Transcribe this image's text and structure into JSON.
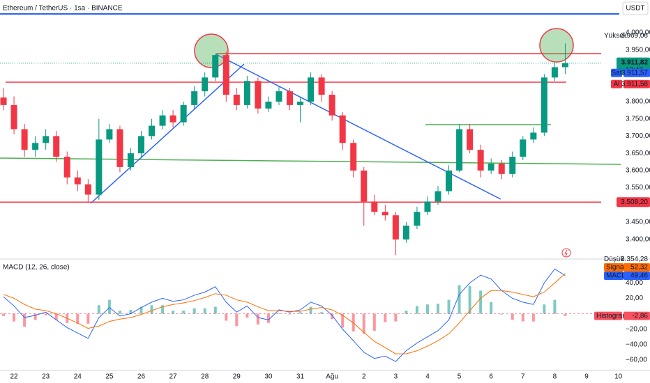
{
  "header": {
    "title": "Ethereum / TetherUS · 1sa · BINANCE",
    "currency": "USDT"
  },
  "chart_data": [
    {
      "type": "candlestick",
      "x": [
        -0.33,
        0,
        0.33,
        0.67,
        1,
        1.33,
        1.67,
        2,
        2.33,
        2.67,
        3,
        3.33,
        3.67,
        4,
        4.33,
        4.67,
        5,
        5.33,
        5.67,
        6,
        6.33,
        6.67,
        7,
        7.33,
        7.67,
        8,
        8.33,
        8.67,
        9,
        9.33,
        9.67,
        10,
        10.33,
        10.67,
        11,
        11.33,
        11.67,
        12,
        12.33,
        12.67,
        13,
        13.33,
        13.67,
        14,
        14.33,
        14.67,
        15,
        15.33,
        15.67,
        16,
        16.33,
        16.67,
        17,
        17.33
      ],
      "open": [
        3812,
        3790,
        3720,
        3660,
        3680,
        3700,
        3640,
        3580,
        3560,
        3530,
        3690,
        3720,
        3610,
        3650,
        3700,
        3730,
        3760,
        3740,
        3790,
        3830,
        3870,
        3935,
        3820,
        3790,
        3860,
        3780,
        3800,
        3830,
        3790,
        3800,
        3870,
        3820,
        3760,
        3680,
        3600,
        3510,
        3480,
        3470,
        3400,
        3440,
        3480,
        3510,
        3540,
        3600,
        3720,
        3660,
        3600,
        3620,
        3590,
        3640,
        3690,
        3710,
        3870,
        3900
      ],
      "high": [
        3840,
        3815,
        3735,
        3700,
        3720,
        3715,
        3655,
        3600,
        3575,
        3750,
        3735,
        3730,
        3665,
        3715,
        3750,
        3775,
        3775,
        3800,
        3845,
        3885,
        3940,
        3945,
        3840,
        3875,
        3870,
        3815,
        3845,
        3840,
        3815,
        3885,
        3880,
        3830,
        3770,
        3690,
        3610,
        3530,
        3500,
        3480,
        3450,
        3495,
        3525,
        3555,
        3615,
        3735,
        3735,
        3675,
        3635,
        3630,
        3655,
        3700,
        3725,
        3880,
        3915,
        3969.06
      ],
      "low": [
        3775,
        3705,
        3640,
        3640,
        3660,
        3625,
        3560,
        3540,
        3510,
        3515,
        3680,
        3595,
        3600,
        3635,
        3690,
        3720,
        3725,
        3730,
        3780,
        3815,
        3860,
        3800,
        3775,
        3780,
        3765,
        3770,
        3790,
        3775,
        3740,
        3790,
        3800,
        3745,
        3660,
        3580,
        3440,
        3470,
        3455,
        3354.28,
        3390,
        3430,
        3470,
        3500,
        3530,
        3595,
        3650,
        3580,
        3590,
        3575,
        3580,
        3630,
        3680,
        3700,
        3860,
        3880
      ],
      "close": [
        3790,
        3720,
        3660,
        3680,
        3700,
        3640,
        3580,
        3560,
        3530,
        3690,
        3720,
        3610,
        3650,
        3700,
        3730,
        3760,
        3740,
        3790,
        3830,
        3870,
        3935,
        3820,
        3790,
        3860,
        3780,
        3800,
        3830,
        3790,
        3800,
        3870,
        3820,
        3760,
        3680,
        3600,
        3510,
        3480,
        3470,
        3400,
        3440,
        3480,
        3510,
        3540,
        3600,
        3720,
        3660,
        3600,
        3620,
        3590,
        3640,
        3690,
        3710,
        3870,
        3900,
        3911.82
      ],
      "up_color": "#089981",
      "down_color": "#f23645",
      "xlim": [
        -0.44,
        18.46
      ],
      "ylim": [
        3343,
        4095
      ],
      "yticks": [
        {
          "value": 4000,
          "label": "4.000,00"
        },
        {
          "value": 3950,
          "label": "3.950,00"
        },
        {
          "value": 3800,
          "label": "3.800,00"
        },
        {
          "value": 3750,
          "label": "3.750,00"
        },
        {
          "value": 3700,
          "label": "3.700,00"
        },
        {
          "value": 3650,
          "label": "3.650,00"
        },
        {
          "value": 3600,
          "label": "3.600,00"
        },
        {
          "value": 3550,
          "label": "3.550,00"
        },
        {
          "value": 3450,
          "label": "3.450,00"
        },
        {
          "value": 3400,
          "label": "3.400,00"
        }
      ],
      "high_tag": {
        "name": "Yüksek",
        "value": 3969.06,
        "label": "3.969,06"
      },
      "low_tag": {
        "name": "Düşük",
        "value": 3354.28,
        "label": "3.354,28"
      },
      "last_price": {
        "value": 3911.82,
        "label": "3.911,82",
        "countdown": "13:43",
        "color": "#089981"
      },
      "bid_ask": [
        {
          "name": "Al",
          "value": 3911.58,
          "label": "3.911,58",
          "color": "#f23645"
        },
        {
          "name": "Sat",
          "value": 3911.57,
          "label": "3.911,57",
          "color": "#2962ff"
        }
      ],
      "level": {
        "value": 3508.2,
        "label": "3.508,20",
        "color": "#f23645"
      }
    },
    {
      "type": "macd",
      "title": "MACD (12, 26, close)",
      "x": [
        -0.33,
        0,
        0.33,
        0.67,
        1,
        1.33,
        1.67,
        2,
        2.33,
        2.67,
        3,
        3.33,
        3.67,
        4,
        4.33,
        4.67,
        5,
        5.33,
        5.67,
        6,
        6.33,
        6.67,
        7,
        7.33,
        7.67,
        8,
        8.33,
        8.67,
        9,
        9.33,
        9.67,
        10,
        10.33,
        10.67,
        11,
        11.33,
        11.67,
        12,
        12.33,
        12.67,
        13,
        13.33,
        13.67,
        14,
        14.33,
        14.67,
        15,
        15.33,
        15.67,
        16,
        16.33,
        16.67,
        17,
        17.33
      ],
      "series": [
        {
          "name": "MACD",
          "color": "#2962ff",
          "last_label": "49,46",
          "values": [
            22,
            10,
            -5,
            -2,
            2,
            -8,
            -18,
            -25,
            -32,
            -5,
            8,
            -3,
            0,
            8,
            15,
            20,
            16,
            18,
            24,
            28,
            35,
            15,
            2,
            10,
            -5,
            -8,
            5,
            2,
            5,
            15,
            10,
            -2,
            -20,
            -35,
            -50,
            -58,
            -55,
            -62,
            -48,
            -38,
            -30,
            -22,
            -8,
            25,
            40,
            50,
            45,
            30,
            20,
            15,
            12,
            40,
            58,
            49.46
          ]
        },
        {
          "name": "Signal",
          "color": "#ff6d00",
          "last_label": "52,32",
          "values": [
            25,
            20,
            12,
            6,
            4,
            0,
            -6,
            -12,
            -19,
            -16,
            -10,
            -7,
            -5,
            -1,
            4,
            9,
            12,
            14,
            17,
            21,
            26,
            24,
            18,
            15,
            9,
            4,
            4,
            3,
            3,
            6,
            8,
            5,
            -2,
            -12,
            -24,
            -36,
            -44,
            -52,
            -52,
            -48,
            -42,
            -35,
            -26,
            -12,
            4,
            20,
            30,
            30,
            28,
            25,
            22,
            28,
            40,
            52.32
          ]
        }
      ],
      "histogram": {
        "name": "Histogram",
        "last_label": "-2,86",
        "up_color": "#26a69a",
        "down_color": "#f7525f",
        "values": [
          -3,
          -10,
          -17,
          -8,
          -2,
          -8,
          -12,
          -13,
          -13,
          11,
          18,
          4,
          5,
          9,
          11,
          11,
          4,
          4,
          7,
          7,
          9,
          -9,
          -16,
          -5,
          -14,
          -12,
          1,
          -1,
          2,
          9,
          2,
          -7,
          -18,
          -23,
          -26,
          -22,
          -11,
          -10,
          4,
          10,
          12,
          13,
          18,
          37,
          36,
          30,
          15,
          0,
          -8,
          -10,
          -10,
          12,
          18,
          -2.86
        ]
      },
      "xlim": [
        -0.44,
        18.46
      ],
      "ylim": [
        -73.6,
        70.9
      ],
      "yticks": [
        {
          "value": 40,
          "label": "40,00"
        },
        {
          "value": 20,
          "label": "20,00"
        },
        {
          "value": -20,
          "label": "−20,00"
        },
        {
          "value": -40,
          "label": "−40,00"
        },
        {
          "value": -60,
          "label": "−60,00"
        }
      ],
      "xticks": [
        {
          "value": 0,
          "label": "22"
        },
        {
          "value": 1,
          "label": "23"
        },
        {
          "value": 2,
          "label": "24"
        },
        {
          "value": 3,
          "label": "25"
        },
        {
          "value": 4,
          "label": "26"
        },
        {
          "value": 5,
          "label": "27"
        },
        {
          "value": 6,
          "label": "28"
        },
        {
          "value": 7,
          "label": "29"
        },
        {
          "value": 8,
          "label": "30"
        },
        {
          "value": 9,
          "label": "31"
        },
        {
          "value": 10,
          "label": "Ağu"
        },
        {
          "value": 11,
          "label": "2"
        },
        {
          "value": 12,
          "label": "3"
        },
        {
          "value": 13,
          "label": "4"
        },
        {
          "value": 14,
          "label": "5"
        },
        {
          "value": 15,
          "label": "6"
        },
        {
          "value": 16,
          "label": "7"
        },
        {
          "value": 17,
          "label": "8"
        },
        {
          "value": 18,
          "label": "9"
        },
        {
          "value": 19,
          "label": "10"
        }
      ]
    }
  ]
}
